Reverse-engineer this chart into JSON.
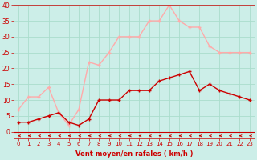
{
  "xlabel": "Vent moyen/en rafales ( km/h )",
  "x": [
    0,
    1,
    2,
    3,
    4,
    5,
    6,
    7,
    8,
    9,
    10,
    11,
    12,
    13,
    14,
    15,
    16,
    17,
    18,
    19,
    20,
    21,
    22,
    23
  ],
  "vent_moyen": [
    3,
    3,
    4,
    5,
    6,
    3,
    2,
    4,
    10,
    10,
    10,
    13,
    13,
    13,
    16,
    17,
    18,
    19,
    13,
    15,
    13,
    12,
    11,
    10
  ],
  "rafales": [
    7,
    11,
    11,
    14,
    6,
    2,
    7,
    22,
    21,
    25,
    30,
    30,
    30,
    35,
    35,
    40,
    35,
    33,
    33,
    27,
    25,
    25,
    25,
    25
  ],
  "color_moyen": "#cc0000",
  "color_rafales": "#ffaaaa",
  "bg_color": "#cceee8",
  "grid_color": "#aaddcc",
  "arrow_color": "#cc0000",
  "ylim": [
    -2,
    40
  ],
  "xlim": [
    -0.5,
    23.5
  ],
  "yticks": [
    0,
    5,
    10,
    15,
    20,
    25,
    30,
    35,
    40
  ],
  "xticks": [
    0,
    1,
    2,
    3,
    4,
    5,
    6,
    7,
    8,
    9,
    10,
    11,
    12,
    13,
    14,
    15,
    16,
    17,
    18,
    19,
    20,
    21,
    22,
    23
  ],
  "xlabel_color": "#cc0000",
  "tick_color": "#cc0000",
  "markersize": 2.5,
  "linewidth": 1.0
}
